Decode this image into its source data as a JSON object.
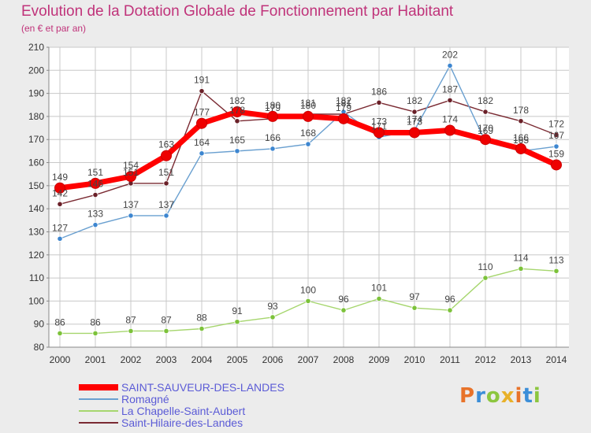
{
  "header": {
    "title": "Evolution de la Dotation Globale de Fonctionnement par Habitant",
    "subtitle": "(en € et par an)"
  },
  "logo": {
    "text": "Proxiti",
    "colors": [
      "#e8732a",
      "#3b8ed8",
      "#8cc63f",
      "#e8b12a"
    ]
  },
  "colors": {
    "title": "#c0337a",
    "background": "#ececec",
    "plot_background": "#ffffff",
    "grid": "#c8c8c8",
    "legend_text": "#5b5bd6"
  },
  "chart_data": {
    "type": "line",
    "title": "Evolution de la Dotation Globale de Fonctionnement par Habitant",
    "subtitle": "(en € et par an)",
    "x": [
      "2000",
      "2001",
      "2002",
      "2003",
      "2004",
      "2005",
      "2006",
      "2007",
      "2008",
      "2009",
      "2010",
      "2011",
      "2012",
      "2013",
      "2014"
    ],
    "ylim": [
      80,
      210
    ],
    "yticks": [
      80,
      90,
      100,
      110,
      120,
      130,
      140,
      150,
      160,
      170,
      180,
      190,
      200,
      210
    ],
    "grid": true,
    "legend_position": "bottom-left",
    "series": [
      {
        "name": "SAINT-SAUVEUR-DES-LANDES",
        "color": "#ff0000",
        "values": [
          149,
          151,
          154,
          163,
          177,
          182,
          180,
          180,
          179,
          173,
          173,
          174,
          170,
          166,
          159
        ]
      },
      {
        "name": "Romagné",
        "color": "#6aa0d0",
        "values": [
          127,
          133,
          137,
          137,
          164,
          165,
          166,
          168,
          182,
          171,
          174,
          202,
          169,
          165,
          167
        ]
      },
      {
        "name": "La Chapelle-Saint-Aubert",
        "color": "#a6d66e",
        "values": [
          86,
          86,
          87,
          87,
          88,
          91,
          93,
          100,
          96,
          101,
          97,
          96,
          110,
          114,
          113
        ]
      },
      {
        "name": "Saint-Hilaire-des-Landes",
        "color": "#7a2a32",
        "values": [
          142,
          146,
          151,
          151,
          191,
          178,
          179,
          181,
          181,
          186,
          182,
          187,
          182,
          178,
          172
        ]
      }
    ]
  }
}
